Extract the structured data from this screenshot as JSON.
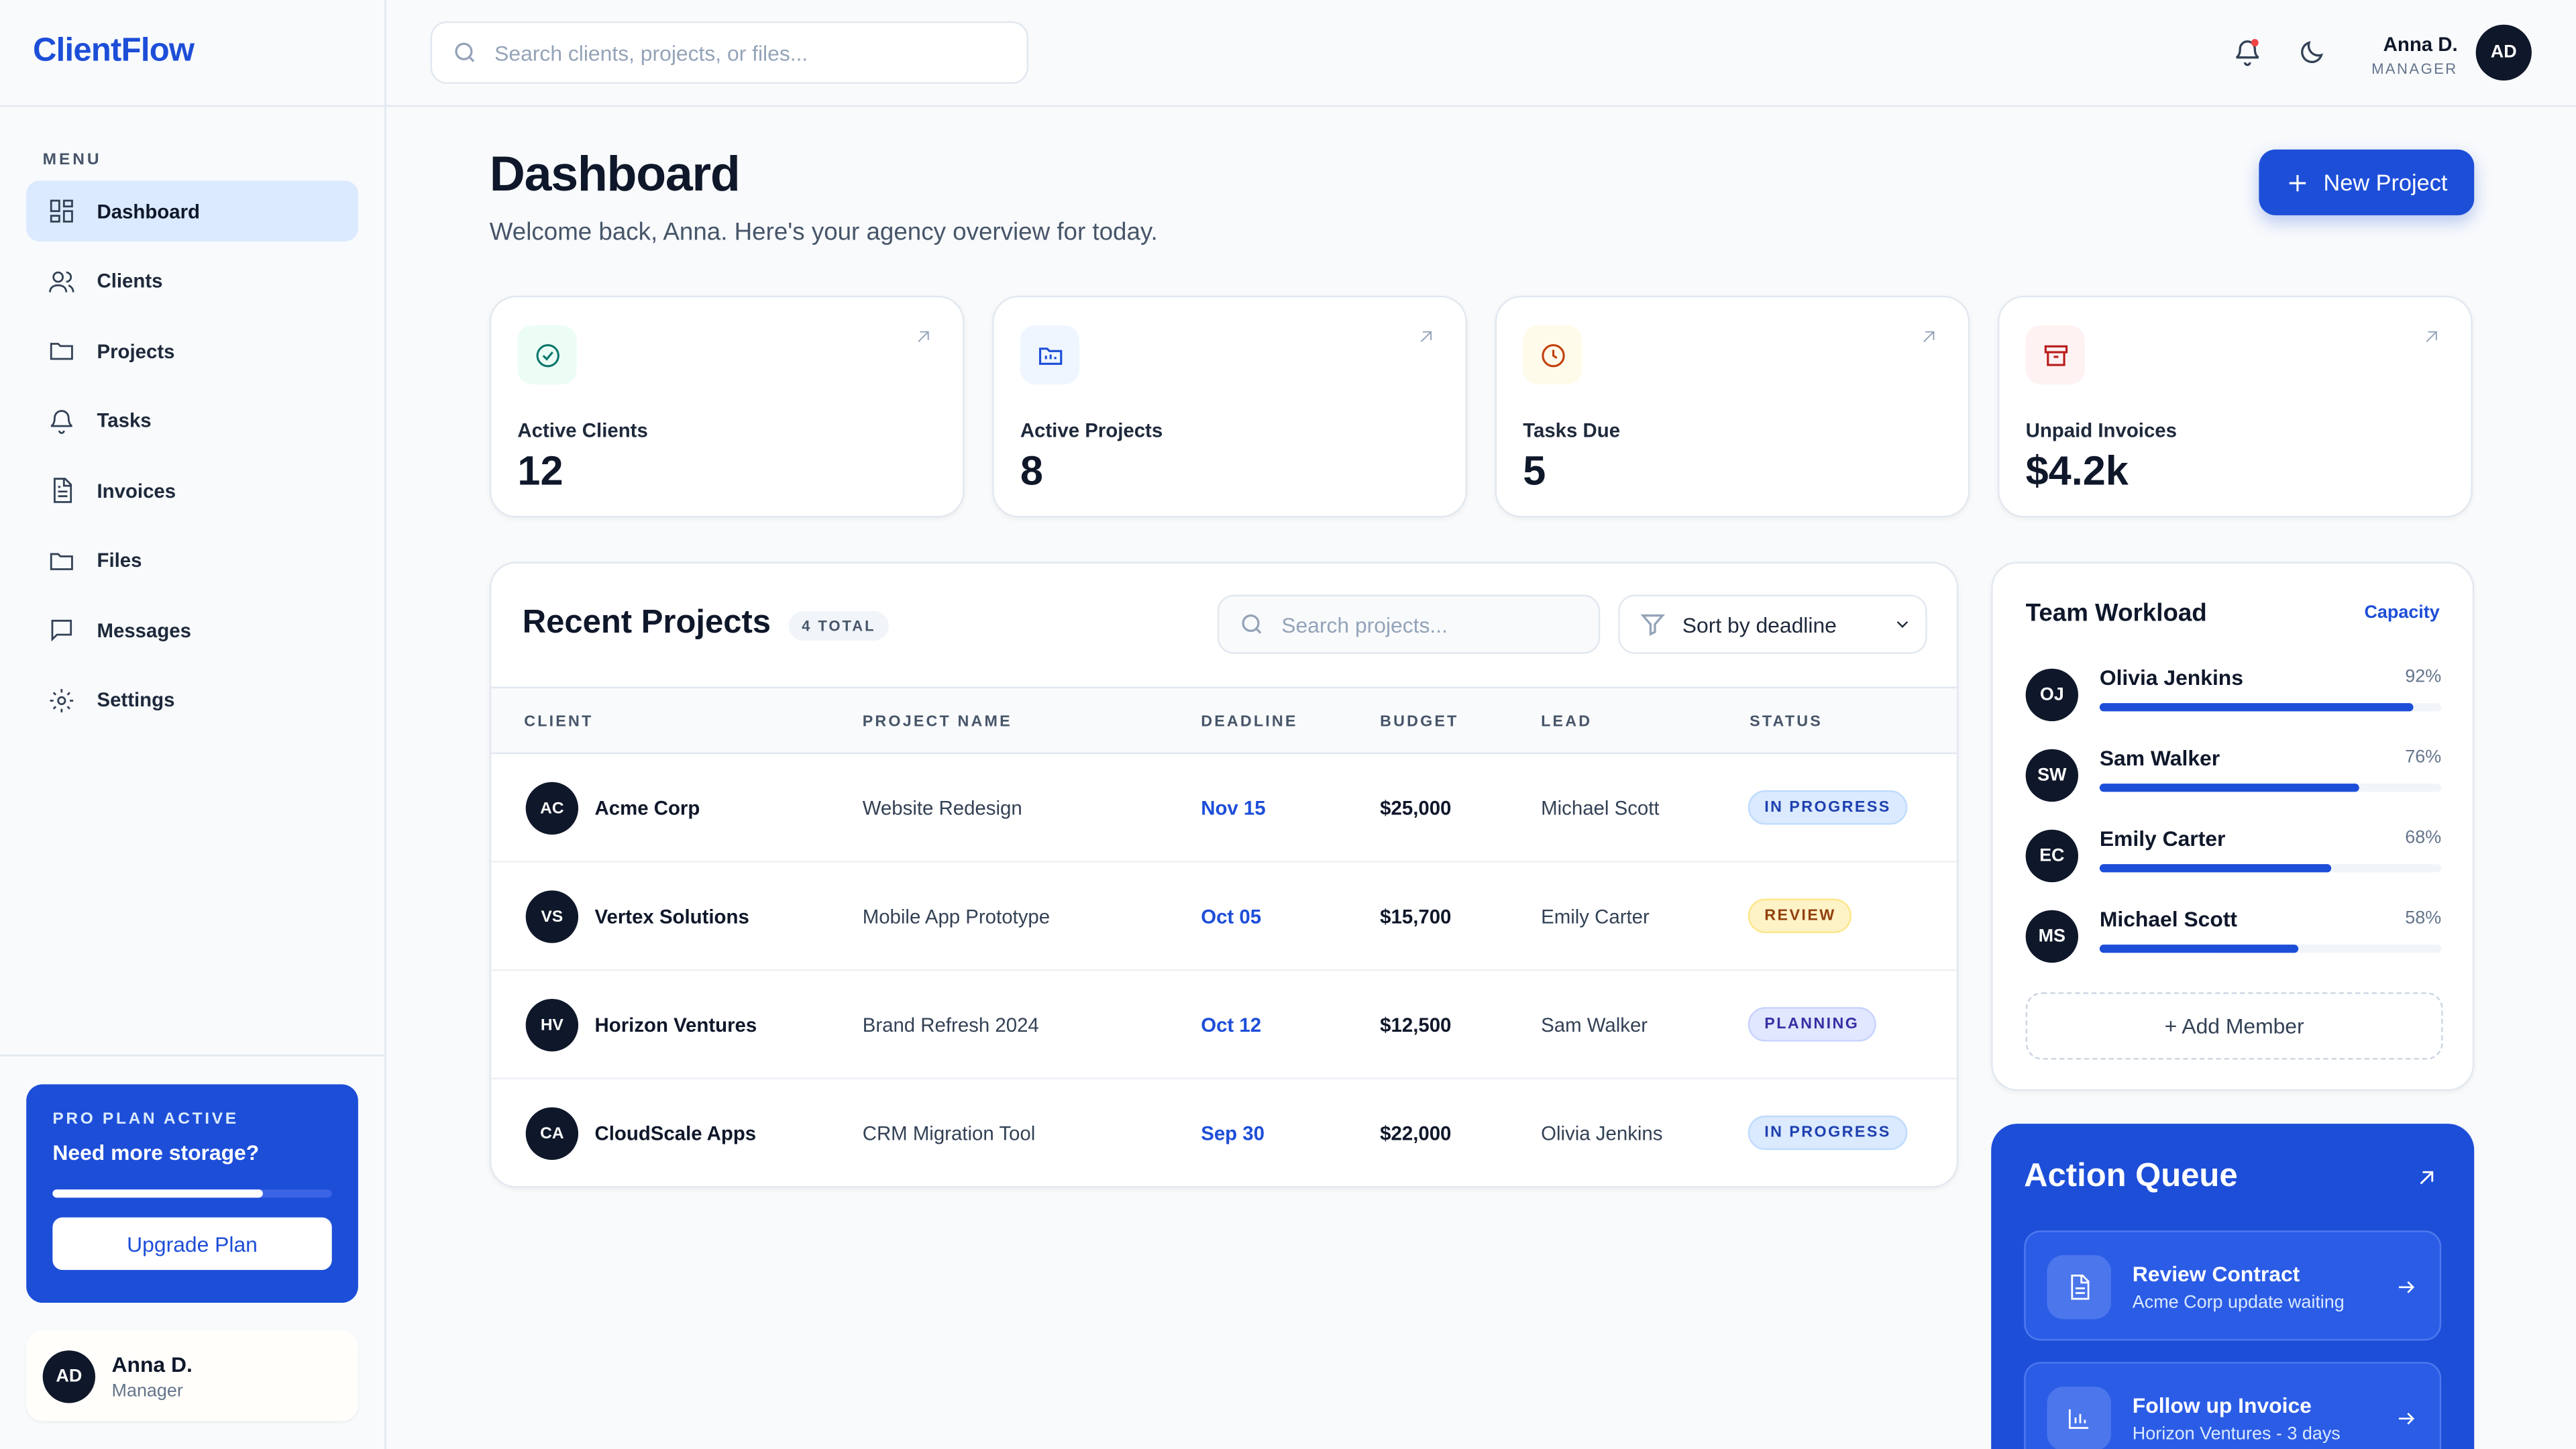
{
  "brand": "ClientFlow",
  "search_placeholder": "Search clients, projects, or files...",
  "user": {
    "name": "Anna D.",
    "role": "MANAGER",
    "initials": "AD"
  },
  "menu_label": "MENU",
  "nav": [
    "Dashboard",
    "Clients",
    "Projects",
    "Tasks",
    "Invoices",
    "Files",
    "Messages",
    "Settings"
  ],
  "promo": {
    "badge": "PRO PLAN ACTIVE",
    "title": "Need more storage?",
    "button": "Upgrade Plan"
  },
  "profile": {
    "initials": "AD",
    "name": "Anna D.",
    "role": "Manager"
  },
  "header": {
    "title": "Dashboard",
    "subtitle": "Welcome back, Anna. Here's your agency overview for today.",
    "button": "New Project"
  },
  "stats": [
    {
      "label": "Active Clients",
      "value": 12
    },
    {
      "label": "Active Projects",
      "value": 8
    },
    {
      "label": "Tasks Due",
      "value": 5
    },
    {
      "label": "Unpaid Invoices",
      "value": "$4.2k"
    }
  ],
  "projects": {
    "title": "Recent Projects",
    "count": "4 TOTAL",
    "search": "Search projects...",
    "sort": "Sort by deadline",
    "columns": [
      "CLIENT",
      "PROJECT NAME",
      "DEADLINE",
      "BUDGET",
      "LEAD",
      "STATUS"
    ],
    "rows": [
      [
        "AC",
        "Acme Corp",
        "Website Redesign",
        "Nov 15",
        "$25,000",
        "Michael Scott",
        "IN PROGRESS"
      ],
      [
        "VS",
        "Vertex Solutions",
        "Mobile App Prototype",
        "Oct 05",
        "$15,700",
        "Emily Carter",
        "REVIEW"
      ],
      [
        "HV",
        "Horizon Ventures",
        "Brand Refresh 2024",
        "Oct 12",
        "$12,500",
        "Sam Walker",
        "PLANNING"
      ],
      [
        "CA",
        "CloudScale Apps",
        "CRM Migration Tool",
        "Sep 30",
        "$22,000",
        "Olivia Jenkins",
        "IN PROGRESS"
      ]
    ]
  },
  "team": {
    "title": "Team Workload",
    "link": "Capacity",
    "members": [
      {
        "initials": "OJ",
        "name": "Olivia Jenkins",
        "load": 92,
        "load_label": "92%"
      },
      {
        "initials": "SW",
        "name": "Sam Walker",
        "load": 76,
        "load_label": "76%"
      },
      {
        "initials": "EC",
        "name": "Emily Carter",
        "load": 68,
        "load_label": "68%"
      },
      {
        "initials": "MS",
        "name": "Michael Scott",
        "load": 58,
        "load_label": "58%"
      }
    ],
    "add": "+ Add Member"
  },
  "actions": {
    "title": "Action Queue",
    "items": [
      {
        "title": "Review Contract",
        "subtitle": "Acme Corp update waiting"
      },
      {
        "title": "Follow up Invoice",
        "subtitle": "Horizon Ventures - 3 days"
      }
    ]
  }
}
